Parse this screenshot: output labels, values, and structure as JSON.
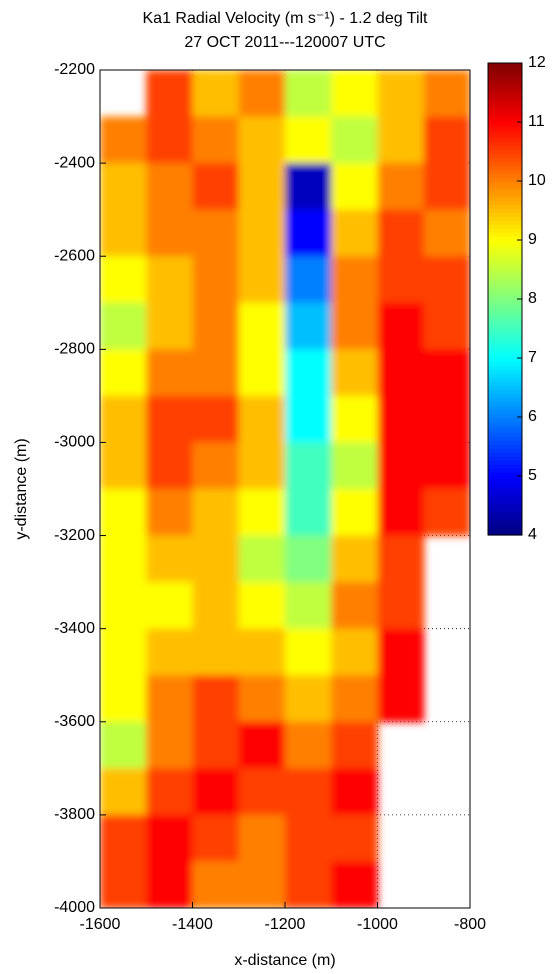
{
  "chart_data": {
    "type": "heatmap",
    "title": "Ka1 Radial Velocity (m s⁻¹) - 1.2 deg Tilt",
    "subtitle": "27 OCT 2011---120007 UTC",
    "xlabel": "x-distance (m)",
    "ylabel": "y-distance (m)",
    "x": [
      -1550,
      -1450,
      -1350,
      -1250,
      -1150,
      -1050,
      -950,
      -850
    ],
    "y": [
      -2250,
      -2350,
      -2450,
      -2550,
      -2650,
      -2750,
      -2850,
      -2950,
      -3050,
      -3150,
      -3250,
      -3350,
      -3450,
      -3550,
      -3650,
      -3750,
      -3850,
      -3950
    ],
    "values": [
      [
        null,
        10.5,
        9.5,
        10,
        8.5,
        9,
        9.5,
        10
      ],
      [
        10,
        10.5,
        10,
        9.5,
        9,
        8.5,
        9.5,
        10.5
      ],
      [
        9.5,
        10,
        10.5,
        9.5,
        4.5,
        9,
        10,
        10.5
      ],
      [
        9.5,
        10,
        10,
        9.5,
        5,
        9.5,
        10.5,
        10
      ],
      [
        9,
        9.5,
        10,
        9.5,
        6,
        10,
        10.5,
        10.5
      ],
      [
        8.5,
        9.5,
        10,
        9,
        6.5,
        10,
        11,
        10.5
      ],
      [
        9,
        10,
        10,
        9,
        7,
        9.5,
        11,
        11
      ],
      [
        9.5,
        10.5,
        10.5,
        9.5,
        7,
        9,
        11,
        11
      ],
      [
        9.5,
        10.5,
        10,
        9.5,
        7.5,
        8.5,
        11,
        11
      ],
      [
        9,
        10,
        9.5,
        9,
        7.5,
        9,
        11,
        10.5
      ],
      [
        9,
        9.5,
        9.5,
        8.5,
        8,
        9.5,
        10.5,
        null
      ],
      [
        9,
        9,
        9.5,
        9,
        8.5,
        10,
        10.5,
        null
      ],
      [
        9,
        9.5,
        9.5,
        9.5,
        9,
        9.5,
        11,
        null
      ],
      [
        9,
        10,
        10.5,
        10,
        9.5,
        10,
        11,
        null
      ],
      [
        8.5,
        10,
        10.5,
        11,
        10,
        10.5,
        null,
        null
      ],
      [
        9.5,
        10.5,
        11,
        10.5,
        10.5,
        11,
        null,
        null
      ],
      [
        10.5,
        11,
        10.5,
        10,
        10.5,
        10.5,
        null,
        null
      ],
      [
        10.5,
        11,
        10,
        10,
        10.5,
        11,
        null,
        null
      ]
    ],
    "xlim": [
      -1600,
      -800
    ],
    "xticks": [
      -1600,
      -1400,
      -1200,
      -1000,
      -800
    ],
    "ylim": [
      -4000,
      -2200
    ],
    "yticks": [
      -4000,
      -3800,
      -3600,
      -3400,
      -3200,
      -3000,
      -2800,
      -2600,
      -2400,
      -2200
    ],
    "clim": [
      4,
      12
    ],
    "cticks": [
      4,
      5,
      6,
      7,
      8,
      9,
      10,
      11,
      12
    ],
    "colormap": "jet",
    "grid": true
  }
}
